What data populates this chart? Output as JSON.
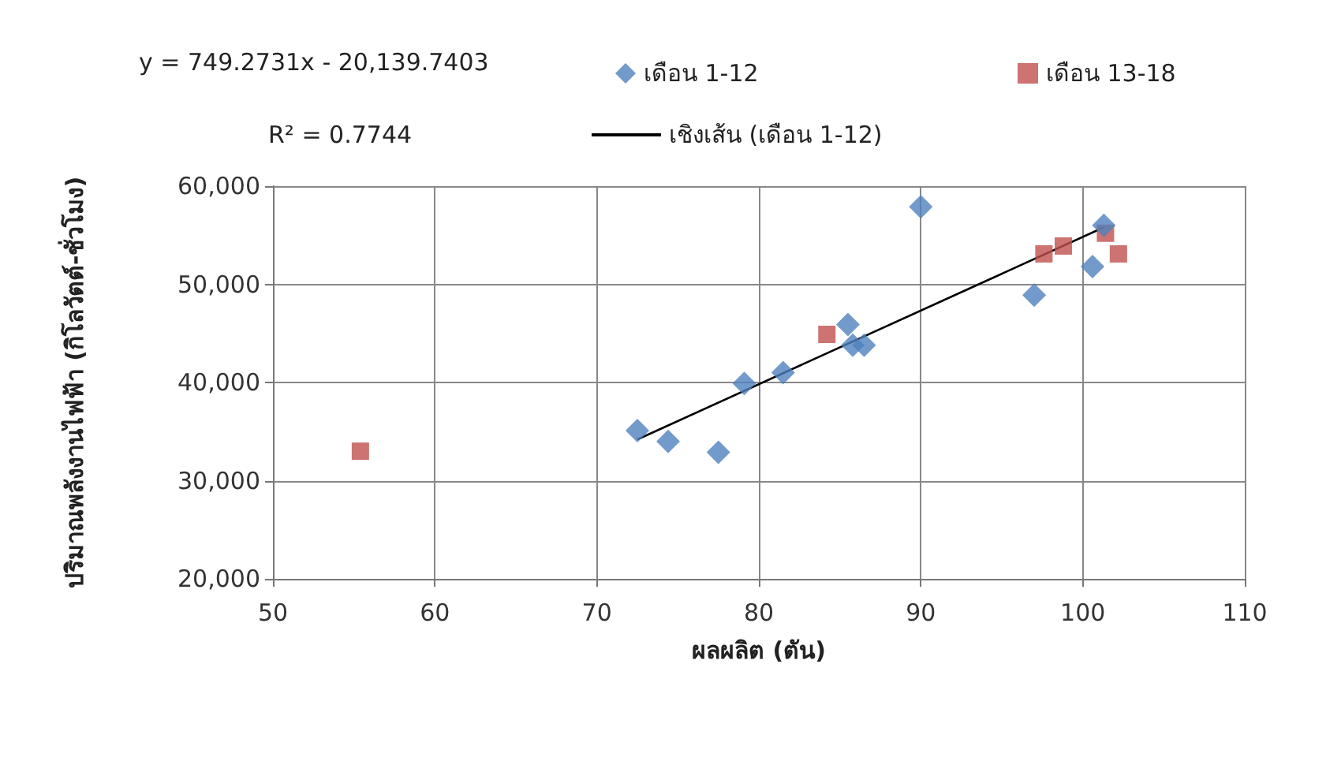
{
  "chart_data": {
    "type": "scatter",
    "xlabel": "ผลผลิต (ตัน)",
    "ylabel": "ปริมาณพลังงานไฟฟ้า (กิโลวัตต์-ชั่วโมง)",
    "annotations": [
      "y = 749.2731x - 20,139.7403",
      "R² = 0.7744"
    ],
    "xlim": [
      50,
      110
    ],
    "xticks": [
      50,
      60,
      70,
      80,
      90,
      100,
      110
    ],
    "ylim": [
      20000,
      60000
    ],
    "yticks": [
      {
        "value": 20000,
        "label": "20,000"
      },
      {
        "value": 30000,
        "label": "30,000"
      },
      {
        "value": 40000,
        "label": "40,000"
      },
      {
        "value": 50000,
        "label": "50,000"
      },
      {
        "value": 60000,
        "label": "60,000"
      }
    ],
    "grid": true,
    "legend": "top",
    "series": [
      {
        "name": "เดือน 1-12",
        "color": "#4f81bd",
        "marker": "diamond",
        "x": [
          72.5,
          74.4,
          77.5,
          79.1,
          81.5,
          85.5,
          85.8,
          86.5,
          90.0,
          97.0,
          100.6,
          101.3
        ],
        "values": [
          35100,
          34000,
          32900,
          39900,
          41000,
          45900,
          43800,
          43800,
          57900,
          48900,
          51800,
          56000
        ]
      },
      {
        "name": "เดือน 13-18",
        "color": "#c0504d",
        "marker": "square",
        "x": [
          55.4,
          84.2,
          97.6,
          98.8,
          101.4,
          102.2
        ],
        "values": [
          33000,
          44900,
          53100,
          53900,
          55200,
          53100
        ]
      },
      {
        "name": "เชิงเส้น (เดือน 1-12)",
        "type": "line",
        "color": "#000000",
        "marker": "none",
        "line_style": "solid",
        "x": [
          72.5,
          101.3
        ],
        "values": [
          34200,
          55800
        ]
      }
    ]
  }
}
